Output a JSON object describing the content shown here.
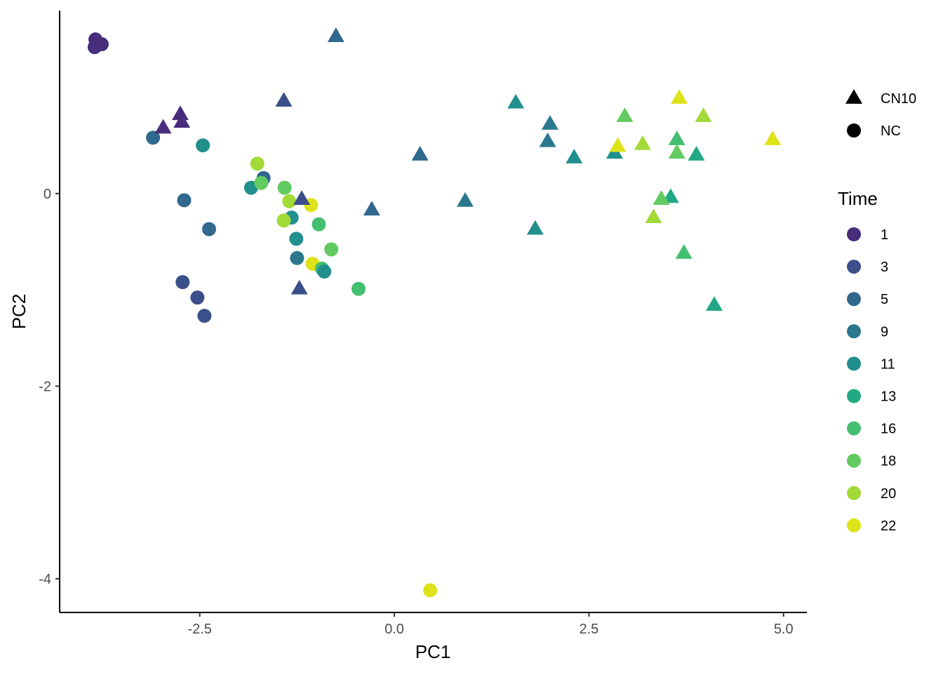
{
  "chart_data": {
    "type": "scatter",
    "xlabel": "PC1",
    "ylabel": "PC2",
    "xlim": [
      -4.3,
      5.3
    ],
    "ylim": [
      -4.35,
      1.9
    ],
    "x_ticks": [
      -2.5,
      0.0,
      2.5,
      5.0
    ],
    "x_tick_labels": [
      "-2.5",
      "0.0",
      "2.5",
      "5.0"
    ],
    "y_ticks": [
      -4,
      -2,
      0
    ],
    "y_tick_labels": [
      "-4",
      "-2",
      "0"
    ],
    "grid": false,
    "legend_placement": "right",
    "shape_legend": {
      "items": [
        {
          "label": "CN10",
          "shape": "triangle"
        },
        {
          "label": "NC",
          "shape": "circle"
        }
      ]
    },
    "color_legend": {
      "title": "Time",
      "items": [
        {
          "label": "1",
          "color": "#472d7b"
        },
        {
          "label": "3",
          "color": "#3b4f8a"
        },
        {
          "label": "5",
          "color": "#31688e"
        },
        {
          "label": "9",
          "color": "#2a788e"
        },
        {
          "label": "11",
          "color": "#21908d"
        },
        {
          "label": "13",
          "color": "#22a884"
        },
        {
          "label": "16",
          "color": "#44bf70"
        },
        {
          "label": "18",
          "color": "#62cb5f"
        },
        {
          "label": "20",
          "color": "#a2da37"
        },
        {
          "label": "22",
          "color": "#dde318"
        }
      ]
    },
    "points": [
      {
        "x": -3.84,
        "y": 1.6,
        "shape": "circle",
        "time": "1"
      },
      {
        "x": -3.85,
        "y": 1.52,
        "shape": "circle",
        "time": "1"
      },
      {
        "x": -3.76,
        "y": 1.55,
        "shape": "circle",
        "time": "1"
      },
      {
        "x": -3.1,
        "y": 0.58,
        "shape": "circle",
        "time": "5"
      },
      {
        "x": -2.46,
        "y": 0.5,
        "shape": "circle",
        "time": "11"
      },
      {
        "x": -2.7,
        "y": -0.07,
        "shape": "circle",
        "time": "5"
      },
      {
        "x": -2.38,
        "y": -0.37,
        "shape": "circle",
        "time": "5"
      },
      {
        "x": -2.72,
        "y": -0.92,
        "shape": "circle",
        "time": "3"
      },
      {
        "x": -2.53,
        "y": -1.08,
        "shape": "circle",
        "time": "3"
      },
      {
        "x": -2.44,
        "y": -1.27,
        "shape": "circle",
        "time": "3"
      },
      {
        "x": -1.84,
        "y": 0.06,
        "shape": "circle",
        "time": "11"
      },
      {
        "x": -1.68,
        "y": 0.16,
        "shape": "circle",
        "time": "5"
      },
      {
        "x": -1.76,
        "y": 0.31,
        "shape": "circle",
        "time": "20"
      },
      {
        "x": -1.71,
        "y": 0.11,
        "shape": "circle",
        "time": "18"
      },
      {
        "x": -1.41,
        "y": 0.06,
        "shape": "circle",
        "time": "18"
      },
      {
        "x": -1.35,
        "y": -0.08,
        "shape": "circle",
        "time": "20"
      },
      {
        "x": -1.07,
        "y": -0.12,
        "shape": "circle",
        "time": "22"
      },
      {
        "x": -1.32,
        "y": -0.25,
        "shape": "circle",
        "time": "11"
      },
      {
        "x": -1.42,
        "y": -0.28,
        "shape": "circle",
        "time": "20"
      },
      {
        "x": -1.26,
        "y": -0.47,
        "shape": "circle",
        "time": "11"
      },
      {
        "x": -0.97,
        "y": -0.32,
        "shape": "circle",
        "time": "16"
      },
      {
        "x": -0.81,
        "y": -0.58,
        "shape": "circle",
        "time": "18"
      },
      {
        "x": -1.25,
        "y": -0.67,
        "shape": "circle",
        "time": "9"
      },
      {
        "x": -1.05,
        "y": -0.73,
        "shape": "circle",
        "time": "22"
      },
      {
        "x": -0.93,
        "y": -0.78,
        "shape": "circle",
        "time": "16"
      },
      {
        "x": -0.9,
        "y": -0.81,
        "shape": "circle",
        "time": "11"
      },
      {
        "x": -0.46,
        "y": -0.99,
        "shape": "circle",
        "time": "16"
      },
      {
        "x": 0.46,
        "y": -4.12,
        "shape": "circle",
        "time": "22"
      },
      {
        "x": -0.75,
        "y": 1.63,
        "shape": "triangle",
        "time": "5"
      },
      {
        "x": -1.42,
        "y": 0.96,
        "shape": "triangle",
        "time": "3"
      },
      {
        "x": -2.75,
        "y": 0.82,
        "shape": "triangle",
        "time": "1"
      },
      {
        "x": -2.73,
        "y": 0.74,
        "shape": "triangle",
        "time": "1"
      },
      {
        "x": -2.97,
        "y": 0.68,
        "shape": "triangle",
        "time": "1"
      },
      {
        "x": -1.19,
        "y": -0.06,
        "shape": "triangle",
        "time": "3"
      },
      {
        "x": -1.22,
        "y": -0.99,
        "shape": "triangle",
        "time": "3"
      },
      {
        "x": -0.29,
        "y": -0.17,
        "shape": "triangle",
        "time": "5"
      },
      {
        "x": 0.33,
        "y": 0.4,
        "shape": "triangle",
        "time": "5"
      },
      {
        "x": 0.91,
        "y": -0.08,
        "shape": "triangle",
        "time": "9"
      },
      {
        "x": 1.56,
        "y": 0.94,
        "shape": "triangle",
        "time": "11"
      },
      {
        "x": 2.0,
        "y": 0.72,
        "shape": "triangle",
        "time": "9"
      },
      {
        "x": 1.97,
        "y": 0.54,
        "shape": "triangle",
        "time": "9"
      },
      {
        "x": 2.31,
        "y": 0.37,
        "shape": "triangle",
        "time": "11"
      },
      {
        "x": 1.81,
        "y": -0.37,
        "shape": "triangle",
        "time": "11"
      },
      {
        "x": 2.83,
        "y": 0.42,
        "shape": "triangle",
        "time": "11"
      },
      {
        "x": 2.96,
        "y": 0.8,
        "shape": "triangle",
        "time": "18"
      },
      {
        "x": 2.87,
        "y": 0.49,
        "shape": "triangle",
        "time": "22"
      },
      {
        "x": 3.19,
        "y": 0.51,
        "shape": "triangle",
        "time": "20"
      },
      {
        "x": 3.66,
        "y": 0.99,
        "shape": "triangle",
        "time": "22"
      },
      {
        "x": 3.97,
        "y": 0.8,
        "shape": "triangle",
        "time": "20"
      },
      {
        "x": 3.63,
        "y": 0.56,
        "shape": "triangle",
        "time": "16"
      },
      {
        "x": 3.63,
        "y": 0.42,
        "shape": "triangle",
        "time": "18"
      },
      {
        "x": 3.88,
        "y": 0.4,
        "shape": "triangle",
        "time": "13"
      },
      {
        "x": 4.86,
        "y": 0.56,
        "shape": "triangle",
        "time": "22"
      },
      {
        "x": 3.55,
        "y": -0.04,
        "shape": "triangle",
        "time": "13"
      },
      {
        "x": 3.43,
        "y": -0.06,
        "shape": "triangle",
        "time": "18"
      },
      {
        "x": 3.33,
        "y": -0.25,
        "shape": "triangle",
        "time": "20"
      },
      {
        "x": 3.72,
        "y": -0.62,
        "shape": "triangle",
        "time": "16"
      },
      {
        "x": 4.11,
        "y": -1.16,
        "shape": "triangle",
        "time": "13"
      }
    ]
  }
}
